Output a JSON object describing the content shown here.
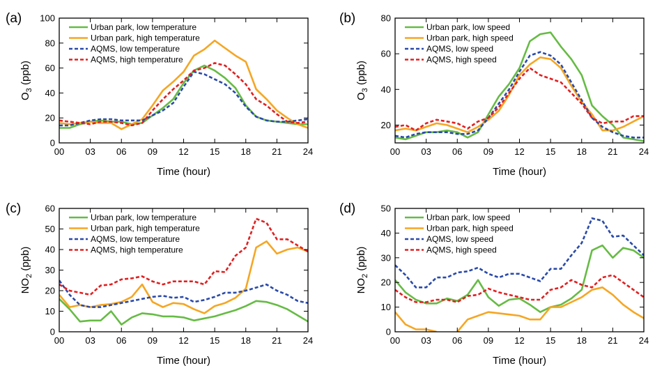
{
  "chart_data": [
    {
      "type": "line",
      "panel_label": "(a)",
      "xlabel": "Time (hour)",
      "ylabel": "O3 (ppb)",
      "ylabel_base": "O",
      "ylabel_sub": "3",
      "ylabel_tail": " (ppb)",
      "xlim": [
        0,
        24
      ],
      "ylim": [
        0,
        100
      ],
      "xticks": [
        0,
        3,
        6,
        9,
        12,
        15,
        18,
        21,
        24
      ],
      "xtick_labels": [
        "00",
        "03",
        "06",
        "09",
        "12",
        "15",
        "18",
        "21",
        "24"
      ],
      "yticks": [
        0,
        20,
        40,
        60,
        80,
        100
      ],
      "x": [
        0,
        1,
        2,
        3,
        4,
        5,
        6,
        7,
        8,
        9,
        10,
        11,
        12,
        13,
        14,
        15,
        16,
        17,
        18,
        19,
        20,
        21,
        22,
        23,
        24
      ],
      "series": [
        {
          "name": "Urban park, low temperature",
          "color": "#66bb44",
          "dash": "solid",
          "values": [
            12,
            12,
            15,
            17,
            18,
            17,
            17,
            15,
            16,
            22,
            28,
            35,
            48,
            58,
            62,
            58,
            52,
            44,
            30,
            21,
            18,
            17,
            16,
            15,
            15
          ]
        },
        {
          "name": "Urban park, high temperature",
          "color": "#f5a623",
          "dash": "solid",
          "values": [
            16,
            15,
            16,
            17,
            16,
            16,
            11,
            15,
            19,
            30,
            42,
            49,
            57,
            70,
            75,
            82,
            76,
            70,
            65,
            43,
            35,
            26,
            20,
            15,
            12
          ]
        },
        {
          "name": "AQMS, low temperature",
          "color": "#2a4aa8",
          "dash": "dashed",
          "values": [
            14,
            14,
            16,
            18,
            19,
            19,
            18,
            18,
            18,
            22,
            26,
            32,
            45,
            57,
            55,
            51,
            47,
            40,
            29,
            21,
            18,
            17,
            17,
            18,
            19
          ]
        },
        {
          "name": "AQMS, high temperature",
          "color": "#e02020",
          "dash": "dashed",
          "values": [
            18,
            17,
            16,
            15,
            17,
            17,
            16,
            14,
            16,
            26,
            35,
            43,
            50,
            58,
            60,
            64,
            62,
            55,
            47,
            35,
            30,
            23,
            17,
            16,
            17
          ]
        }
      ]
    },
    {
      "type": "line",
      "panel_label": "(b)",
      "xlabel": "Time (hour)",
      "ylabel": "O3 (ppb)",
      "ylabel_base": "O",
      "ylabel_sub": "3",
      "ylabel_tail": " (ppb)",
      "xlim": [
        0,
        24
      ],
      "ylim": [
        10,
        80
      ],
      "xticks": [
        0,
        3,
        6,
        9,
        12,
        15,
        18,
        21,
        24
      ],
      "xtick_labels": [
        "00",
        "03",
        "06",
        "09",
        "12",
        "15",
        "18",
        "21",
        "24"
      ],
      "yticks": [
        20,
        40,
        60,
        80
      ],
      "x": [
        0,
        1,
        2,
        3,
        4,
        5,
        6,
        7,
        8,
        9,
        10,
        11,
        12,
        13,
        14,
        15,
        16,
        17,
        18,
        19,
        20,
        21,
        22,
        23,
        24
      ],
      "series": [
        {
          "name": "Urban park, low speed",
          "color": "#66bb44",
          "dash": "solid",
          "values": [
            13,
            12,
            14,
            16,
            16,
            17,
            16,
            13,
            16,
            26,
            36,
            43,
            52,
            67,
            71,
            72,
            64,
            57,
            48,
            31,
            25,
            20,
            13,
            12,
            11
          ]
        },
        {
          "name": "Urban park, high speed",
          "color": "#f5a623",
          "dash": "solid",
          "values": [
            17,
            18,
            17,
            19,
            21,
            20,
            18,
            16,
            19,
            23,
            28,
            37,
            48,
            54,
            58,
            57,
            52,
            42,
            33,
            26,
            17,
            17,
            19,
            22,
            25
          ]
        },
        {
          "name": "AQMS, low speed",
          "color": "#2a4aa8",
          "dash": "dashed",
          "values": [
            14,
            13,
            15,
            16,
            16,
            16,
            15,
            15,
            17,
            24,
            32,
            40,
            50,
            59,
            61,
            59,
            54,
            44,
            34,
            24,
            19,
            16,
            14,
            13,
            13
          ]
        },
        {
          "name": "AQMS, high speed",
          "color": "#e02020",
          "dash": "dashed",
          "values": [
            19,
            20,
            17,
            21,
            23,
            22,
            21,
            18,
            22,
            24,
            30,
            38,
            46,
            52,
            48,
            46,
            44,
            38,
            32,
            24,
            21,
            22,
            22,
            25,
            25
          ]
        }
      ]
    },
    {
      "type": "line",
      "panel_label": "(c)",
      "xlabel": "Time (hour)",
      "ylabel": "NO2 (ppb)",
      "ylabel_base": "NO",
      "ylabel_sub": "2",
      "ylabel_tail": " (ppb)",
      "xlim": [
        0,
        24
      ],
      "ylim": [
        0,
        60
      ],
      "xticks": [
        0,
        3,
        6,
        9,
        12,
        15,
        18,
        21,
        24
      ],
      "xtick_labels": [
        "00",
        "03",
        "06",
        "09",
        "12",
        "15",
        "18",
        "21",
        "24"
      ],
      "yticks": [
        0,
        10,
        20,
        30,
        40,
        50,
        60
      ],
      "x": [
        0,
        1,
        2,
        3,
        4,
        5,
        6,
        7,
        8,
        9,
        10,
        11,
        12,
        13,
        14,
        15,
        16,
        17,
        18,
        19,
        20,
        21,
        22,
        23,
        24
      ],
      "series": [
        {
          "name": "Urban park, low temperature",
          "color": "#66bb44",
          "dash": "solid",
          "values": [
            16,
            11,
            5,
            5.5,
            5.5,
            10,
            3.5,
            7,
            9,
            8.5,
            7.5,
            7.5,
            7,
            5.5,
            6.5,
            7.5,
            9,
            10.5,
            12.5,
            15,
            14.5,
            13,
            11,
            8,
            5
          ]
        },
        {
          "name": "Urban park, high temperature",
          "color": "#f5a623",
          "dash": "solid",
          "values": [
            18,
            12,
            13,
            12,
            13,
            13.5,
            14.5,
            17,
            23,
            14.5,
            12,
            14,
            13.5,
            11,
            9,
            12.5,
            14,
            16.5,
            21,
            41,
            44,
            38,
            40,
            41,
            39
          ]
        },
        {
          "name": "AQMS, low temperature",
          "color": "#2a4aa8",
          "dash": "dashed",
          "values": [
            25,
            18,
            13,
            12,
            12,
            13,
            14,
            15,
            16,
            17,
            17.5,
            16.5,
            17,
            14.5,
            15.5,
            17,
            19,
            19,
            20,
            21.5,
            23,
            20,
            18,
            15,
            14
          ]
        },
        {
          "name": "AQMS, high temperature",
          "color": "#e02020",
          "dash": "dashed",
          "values": [
            23,
            20,
            19,
            18,
            22.5,
            23,
            25.5,
            26,
            27,
            24.5,
            23,
            24.5,
            24.5,
            24.5,
            23,
            29.5,
            29,
            37,
            41,
            55,
            53,
            45,
            45,
            42,
            39
          ]
        }
      ]
    },
    {
      "type": "line",
      "panel_label": "(d)",
      "xlabel": "Time (hour)",
      "ylabel": "NO2 (ppb)",
      "ylabel_base": "NO",
      "ylabel_sub": "2",
      "ylabel_tail": " (ppb)",
      "xlim": [
        0,
        24
      ],
      "ylim": [
        0,
        50
      ],
      "xticks": [
        0,
        3,
        6,
        9,
        12,
        15,
        18,
        21,
        24
      ],
      "xtick_labels": [
        "00",
        "03",
        "06",
        "09",
        "12",
        "15",
        "18",
        "21",
        "24"
      ],
      "yticks": [
        0,
        10,
        20,
        30,
        40,
        50
      ],
      "x": [
        0,
        1,
        2,
        3,
        4,
        5,
        6,
        7,
        8,
        9,
        10,
        11,
        12,
        13,
        14,
        15,
        16,
        17,
        18,
        19,
        20,
        21,
        22,
        23,
        24
      ],
      "series": [
        {
          "name": "Urban park, low speed",
          "color": "#66bb44",
          "dash": "solid",
          "values": [
            21,
            16,
            13,
            11.5,
            11.5,
            13.5,
            12.5,
            15,
            21,
            14,
            10.5,
            13,
            13.5,
            11,
            8,
            10,
            11,
            13.5,
            17,
            33,
            35,
            30,
            34,
            33,
            30
          ]
        },
        {
          "name": "Urban park, high speed",
          "color": "#f5a623",
          "dash": "solid",
          "values": [
            8,
            3,
            1,
            1,
            0,
            null,
            0,
            5,
            6.5,
            8,
            7.5,
            7,
            6.5,
            5,
            5,
            10,
            10,
            12,
            14,
            17,
            18,
            15,
            11,
            8,
            5.5
          ]
        },
        {
          "name": "AQMS, low speed",
          "color": "#2a4aa8",
          "dash": "dashed",
          "values": [
            27,
            23,
            18,
            18,
            22,
            22,
            24,
            24.5,
            26,
            23.5,
            22,
            23.5,
            23.5,
            22,
            20.5,
            25.5,
            25.5,
            31,
            36,
            46,
            45,
            38.5,
            39,
            35,
            31
          ]
        },
        {
          "name": "AQMS, high speed",
          "color": "#e02020",
          "dash": "dashed",
          "values": [
            17,
            14,
            12,
            12,
            13,
            13,
            12,
            14.5,
            15,
            17.5,
            16,
            15,
            14,
            13,
            13,
            17,
            18,
            21,
            19,
            18,
            22,
            23,
            20,
            17,
            14
          ]
        }
      ]
    }
  ]
}
